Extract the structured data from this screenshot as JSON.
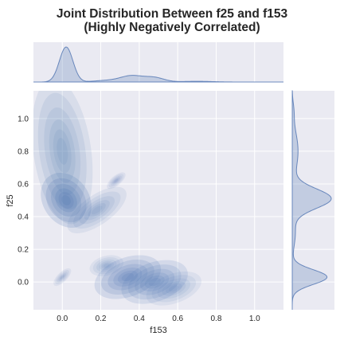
{
  "chart_data": {
    "type": "kde-jointplot",
    "title": "Joint Distribution Between f25 and f153",
    "subtitle": "(Highly Negatively Correlated)",
    "xlabel": "f153",
    "ylabel": "f25",
    "xlim": [
      -0.15,
      1.15
    ],
    "ylim": [
      -0.17,
      1.17
    ],
    "x_ticks": [
      "0.0",
      "0.2",
      "0.4",
      "0.6",
      "0.8",
      "1.0"
    ],
    "y_ticks": [
      "0.0",
      "0.2",
      "0.4",
      "0.6",
      "0.8",
      "1.0"
    ],
    "grid": true,
    "fill_color": "#4c72b0",
    "panel_background": "#eaeaf2",
    "joint_clusters": [
      {
        "x": 0.02,
        "y": 0.5,
        "sx": 0.04,
        "sy": 0.06,
        "rot": -35,
        "w": 1.0
      },
      {
        "x": 0.0,
        "y": 0.8,
        "sx": 0.05,
        "sy": 0.15,
        "rot": -8,
        "w": 0.4
      },
      {
        "x": 0.18,
        "y": 0.44,
        "sx": 0.06,
        "sy": 0.03,
        "rot": -35,
        "w": 0.35
      },
      {
        "x": 0.34,
        "y": 0.03,
        "sx": 0.06,
        "sy": 0.04,
        "rot": -20,
        "w": 0.8
      },
      {
        "x": 0.48,
        "y": 0.0,
        "sx": 0.06,
        "sy": 0.04,
        "rot": -20,
        "w": 0.7
      },
      {
        "x": 0.23,
        "y": 0.1,
        "sx": 0.03,
        "sy": 0.02,
        "rot": -15,
        "w": 0.3
      },
      {
        "x": 0.58,
        "y": -0.04,
        "sx": 0.05,
        "sy": 0.03,
        "rot": -20,
        "w": 0.3
      },
      {
        "x": 0.28,
        "y": 0.62,
        "sx": 0.02,
        "sy": 0.01,
        "rot": -40,
        "w": 0.25
      },
      {
        "x": 0.0,
        "y": 0.03,
        "sx": 0.02,
        "sy": 0.01,
        "rot": -45,
        "w": 0.2
      }
    ],
    "marginal_x": [
      {
        "mu": 0.02,
        "sigma": 0.035,
        "w": 1.0
      },
      {
        "mu": 0.36,
        "sigma": 0.06,
        "w": 0.18
      },
      {
        "mu": 0.48,
        "sigma": 0.05,
        "w": 0.12
      },
      {
        "mu": 0.22,
        "sigma": 0.06,
        "w": 0.04
      },
      {
        "mu": 0.7,
        "sigma": 0.08,
        "w": 0.02
      }
    ],
    "marginal_y": [
      {
        "mu": 0.51,
        "sigma": 0.06,
        "w": 1.0
      },
      {
        "mu": 0.03,
        "sigma": 0.045,
        "w": 0.9
      },
      {
        "mu": 0.8,
        "sigma": 0.12,
        "w": 0.15
      },
      {
        "mu": 0.3,
        "sigma": 0.08,
        "w": 0.08
      },
      {
        "mu": 1.05,
        "sigma": 0.05,
        "w": 0.03
      }
    ]
  }
}
